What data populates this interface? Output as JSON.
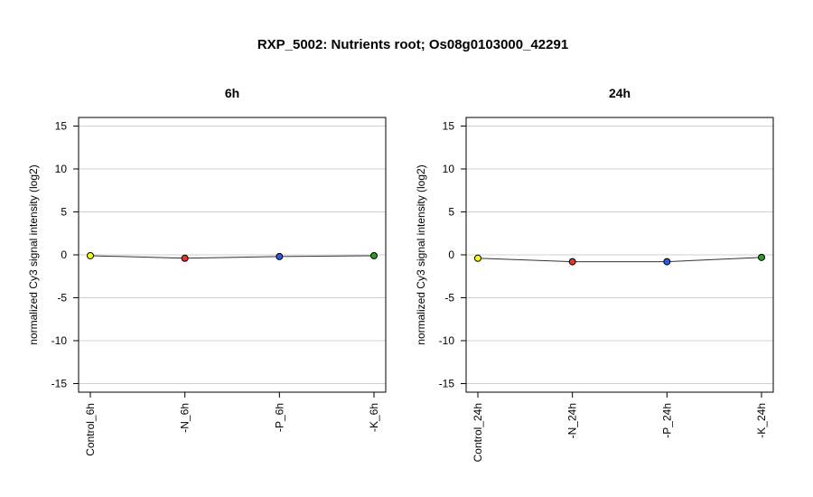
{
  "title": "RXP_5002: Nutrients root; Os08g0103000_42291",
  "chart_data": [
    {
      "type": "line",
      "title": "6h",
      "ylabel": "normalized Cy3 signal intensity (log2)",
      "xlabel": "",
      "ylim": [
        -16,
        16
      ],
      "yticks": [
        -15,
        -10,
        -5,
        0,
        5,
        10,
        15
      ],
      "grid": true,
      "categories": [
        "Control_6h",
        "-N_6h",
        "-P_6h",
        "-K_6h"
      ],
      "values": [
        -0.1,
        -0.4,
        -0.2,
        -0.1
      ],
      "point_colors": [
        "#ffff00",
        "#e8332a",
        "#2b5ce6",
        "#2e9a2e"
      ]
    },
    {
      "type": "line",
      "title": "24h",
      "ylabel": "normalized Cy3 signal intensity (log2)",
      "xlabel": "",
      "ylim": [
        -16,
        16
      ],
      "yticks": [
        -15,
        -10,
        -5,
        0,
        5,
        10,
        15
      ],
      "grid": true,
      "categories": [
        "Control_24h",
        "-N_24h",
        "-P_24h",
        "-K_24h"
      ],
      "values": [
        -0.4,
        -0.8,
        -0.8,
        -0.3
      ],
      "point_colors": [
        "#ffff00",
        "#e8332a",
        "#2b5ce6",
        "#2e9a2e"
      ]
    }
  ]
}
